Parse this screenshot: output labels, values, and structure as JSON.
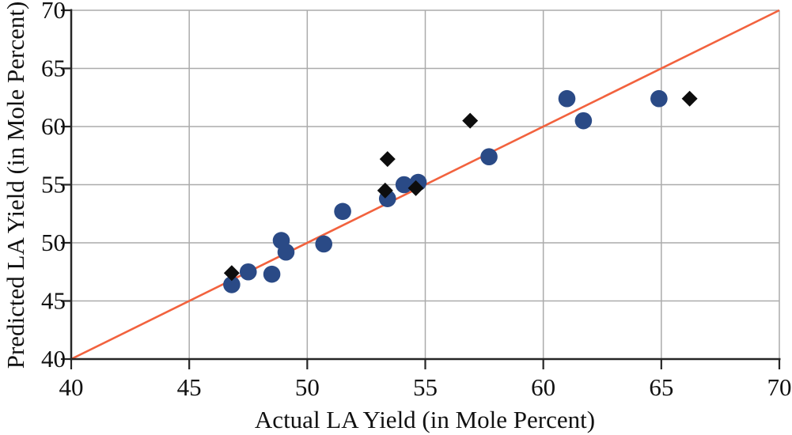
{
  "figure": {
    "background": "#ffffff"
  },
  "chart_data": {
    "type": "scatter",
    "title": "",
    "xlabel": "Actual LA Yield (in Mole Percent)",
    "ylabel": "Predicted LA Yield (in Mole Percent)",
    "xlim": [
      40,
      70
    ],
    "ylim": [
      40,
      70
    ],
    "xticks": [
      40,
      45,
      50,
      55,
      60,
      65,
      70
    ],
    "yticks": [
      40,
      45,
      50,
      55,
      60,
      65,
      70
    ],
    "grid": true,
    "legend_position": "none",
    "series": [
      {
        "name": "blue-circle-points",
        "marker": "circle",
        "color": "#2A4A86",
        "points": [
          [
            46.8,
            46.4
          ],
          [
            47.5,
            47.5
          ],
          [
            48.5,
            47.3
          ],
          [
            48.9,
            50.2
          ],
          [
            49.1,
            49.2
          ],
          [
            50.7,
            49.9
          ],
          [
            51.5,
            52.7
          ],
          [
            53.4,
            53.8
          ],
          [
            54.1,
            55.0
          ],
          [
            54.7,
            55.2
          ],
          [
            57.7,
            57.4
          ],
          [
            61.0,
            62.4
          ],
          [
            61.7,
            60.5
          ],
          [
            64.9,
            62.4
          ]
        ]
      },
      {
        "name": "black-diamond-points",
        "marker": "diamond",
        "color": "#0D0D0D",
        "points": [
          [
            46.8,
            47.4
          ],
          [
            53.3,
            54.5
          ],
          [
            53.4,
            57.2
          ],
          [
            54.6,
            54.7
          ],
          [
            56.9,
            60.5
          ],
          [
            66.2,
            62.4
          ]
        ]
      }
    ],
    "reference_line": {
      "x1": 40,
      "y1": 40,
      "x2": 70,
      "y2": 70,
      "color": "#F2623E"
    }
  },
  "style": {
    "grid_color": "#ABABAB",
    "axis_color": "#262626",
    "tick_color": "#262626",
    "text_color": "#111111",
    "circle_radius": 10.8,
    "diamond_half_diagonal": 10
  }
}
